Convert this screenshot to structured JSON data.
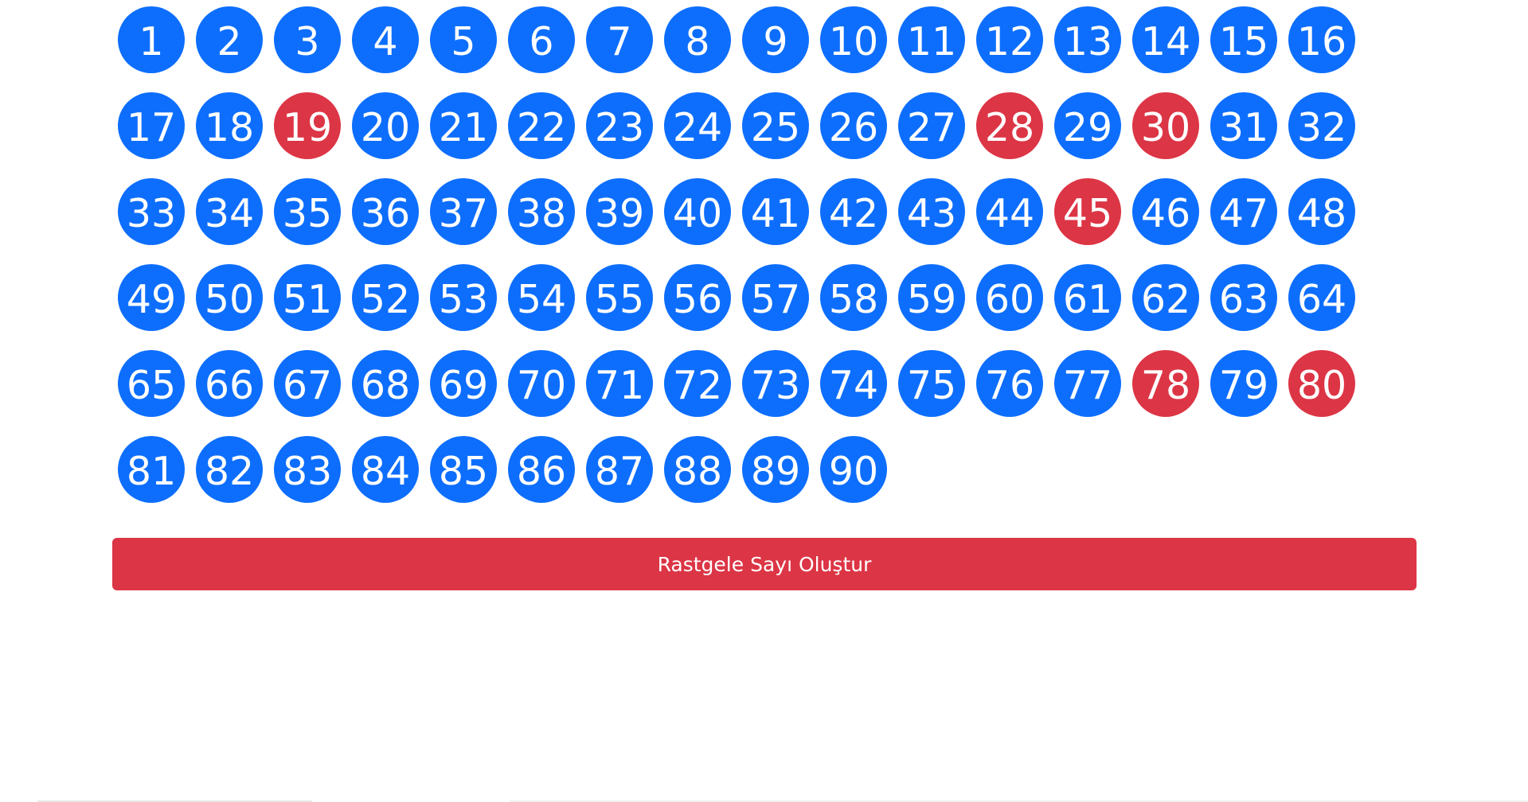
{
  "board": {
    "numbers": [
      1,
      2,
      3,
      4,
      5,
      6,
      7,
      8,
      9,
      10,
      11,
      12,
      13,
      14,
      15,
      16,
      17,
      18,
      19,
      20,
      21,
      22,
      23,
      24,
      25,
      26,
      27,
      28,
      29,
      30,
      31,
      32,
      33,
      34,
      35,
      36,
      37,
      38,
      39,
      40,
      41,
      42,
      43,
      44,
      45,
      46,
      47,
      48,
      49,
      50,
      51,
      52,
      53,
      54,
      55,
      56,
      57,
      58,
      59,
      60,
      61,
      62,
      63,
      64,
      65,
      66,
      67,
      68,
      69,
      70,
      71,
      72,
      73,
      74,
      75,
      76,
      77,
      78,
      79,
      80,
      81,
      82,
      83,
      84,
      85,
      86,
      87,
      88,
      89,
      90
    ],
    "drawn": [
      19,
      28,
      30,
      45,
      78,
      80
    ],
    "columns": 16
  },
  "colors": {
    "ball_default": "#0d6efd",
    "ball_drawn": "#dc3545",
    "button": "#dc3545"
  },
  "actions": {
    "draw_label": "Rastgele Sayı Oluştur"
  }
}
